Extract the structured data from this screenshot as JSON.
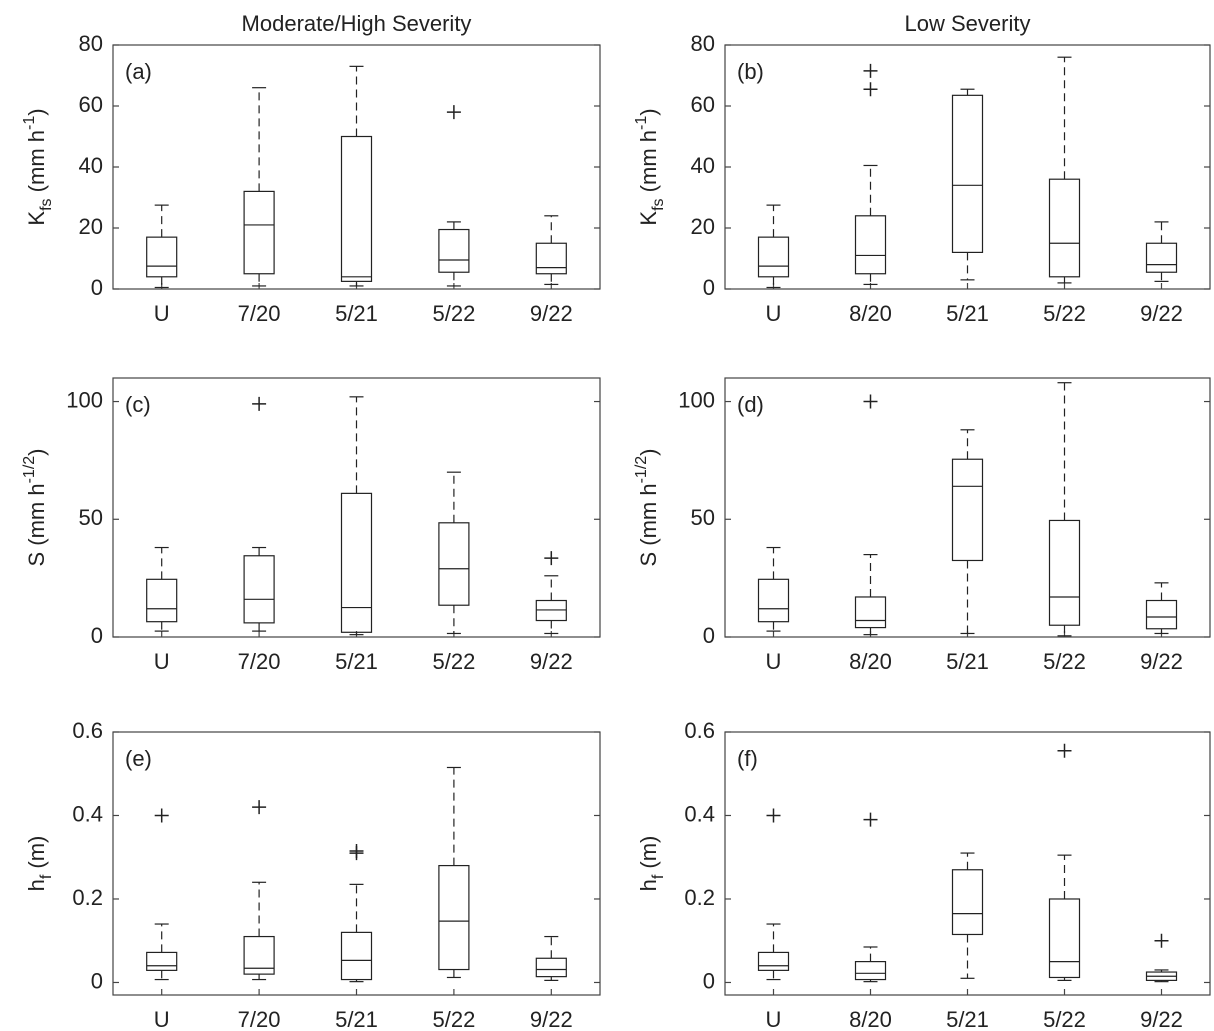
{
  "chart_data": [
    {
      "type": "box",
      "title": "Moderate/High Severity",
      "panel_label": "(a)",
      "ylabel": [
        {
          "text": "K"
        },
        {
          "sub": "fs"
        },
        {
          "text": " (mm h"
        },
        {
          "sup": "-1"
        },
        {
          "text": ")"
        }
      ],
      "categories": [
        "U",
        "7/20",
        "5/21",
        "5/22",
        "9/22"
      ],
      "boxes": [
        {
          "min": 0.5,
          "q1": 4,
          "median": 7.5,
          "q3": 17,
          "max": 27.5,
          "outliers": []
        },
        {
          "min": 1,
          "q1": 5,
          "median": 21,
          "q3": 32,
          "max": 66,
          "outliers": []
        },
        {
          "min": 1,
          "q1": 2.5,
          "median": 4,
          "q3": 50,
          "max": 73,
          "outliers": []
        },
        {
          "min": 1,
          "q1": 5.5,
          "median": 9.5,
          "q3": 19.5,
          "max": 22,
          "outliers": [
            58
          ]
        },
        {
          "min": 1.5,
          "q1": 5,
          "median": 7,
          "q3": 15,
          "max": 24,
          "outliers": []
        }
      ],
      "ylim": [
        0,
        80
      ],
      "yticks": [
        0,
        20,
        40,
        60,
        80
      ]
    },
    {
      "type": "box",
      "title": "Low Severity",
      "panel_label": "(b)",
      "ylabel": [
        {
          "text": "K"
        },
        {
          "sub": "fs"
        },
        {
          "text": " (mm h"
        },
        {
          "sup": "-1"
        },
        {
          "text": ")"
        }
      ],
      "categories": [
        "U",
        "8/20",
        "5/21",
        "5/22",
        "9/22"
      ],
      "boxes": [
        {
          "min": 0.5,
          "q1": 4,
          "median": 7.5,
          "q3": 17,
          "max": 27.5,
          "outliers": []
        },
        {
          "min": 1.5,
          "q1": 5,
          "median": 11,
          "q3": 24,
          "max": 40.5,
          "outliers": [
            65.5,
            71.5
          ]
        },
        {
          "min": 3,
          "q1": 12,
          "median": 34,
          "q3": 63.5,
          "max": 65.5,
          "outliers": []
        },
        {
          "min": 2,
          "q1": 4,
          "median": 15,
          "q3": 36,
          "max": 76,
          "outliers": []
        },
        {
          "min": 2.5,
          "q1": 5.5,
          "median": 8,
          "q3": 15,
          "max": 22,
          "outliers": []
        }
      ],
      "ylim": [
        0,
        80
      ],
      "yticks": [
        0,
        20,
        40,
        60,
        80
      ]
    },
    {
      "type": "box",
      "panel_label": "(c)",
      "ylabel": [
        {
          "text": "S (mm h"
        },
        {
          "sup": "-1/2"
        },
        {
          "text": ")"
        }
      ],
      "categories": [
        "U",
        "7/20",
        "5/21",
        "5/22",
        "9/22"
      ],
      "boxes": [
        {
          "min": 2.5,
          "q1": 6.5,
          "median": 12,
          "q3": 24.5,
          "max": 38,
          "outliers": []
        },
        {
          "min": 2.5,
          "q1": 6,
          "median": 16,
          "q3": 34.5,
          "max": 38,
          "outliers": [
            99
          ]
        },
        {
          "min": 1,
          "q1": 2,
          "median": 12.5,
          "q3": 61,
          "max": 102,
          "outliers": []
        },
        {
          "min": 1.5,
          "q1": 13.5,
          "median": 29,
          "q3": 48.5,
          "max": 70,
          "outliers": []
        },
        {
          "min": 1.5,
          "q1": 7,
          "median": 11.5,
          "q3": 15.5,
          "max": 26,
          "outliers": [
            33.5
          ]
        }
      ],
      "ylim": [
        0,
        110
      ],
      "yticks": [
        0,
        50,
        100
      ]
    },
    {
      "type": "box",
      "panel_label": "(d)",
      "ylabel": [
        {
          "text": "S (mm h"
        },
        {
          "sup": "-1/2"
        },
        {
          "text": ")"
        }
      ],
      "categories": [
        "U",
        "8/20",
        "5/21",
        "5/22",
        "9/22"
      ],
      "boxes": [
        {
          "min": 2.5,
          "q1": 6.5,
          "median": 12,
          "q3": 24.5,
          "max": 38,
          "outliers": []
        },
        {
          "min": 1,
          "q1": 4,
          "median": 7,
          "q3": 17,
          "max": 35,
          "outliers": [
            100
          ]
        },
        {
          "min": 1.5,
          "q1": 32.5,
          "median": 64,
          "q3": 75.5,
          "max": 88,
          "outliers": []
        },
        {
          "min": 0.5,
          "q1": 5,
          "median": 17,
          "q3": 49.5,
          "max": 108,
          "outliers": []
        },
        {
          "min": 1.5,
          "q1": 3.5,
          "median": 8.5,
          "q3": 15.5,
          "max": 23,
          "outliers": []
        }
      ],
      "ylim": [
        0,
        110
      ],
      "yticks": [
        0,
        50,
        100
      ]
    },
    {
      "type": "box",
      "panel_label": "(e)",
      "ylabel": [
        {
          "text": "h"
        },
        {
          "sub": "f"
        },
        {
          "text": " (m)"
        }
      ],
      "categories": [
        "U",
        "7/20",
        "5/21",
        "5/22",
        "9/22"
      ],
      "boxes": [
        {
          "min": 0.007,
          "q1": 0.029,
          "median": 0.04,
          "q3": 0.072,
          "max": 0.14,
          "outliers": [
            0.4
          ]
        },
        {
          "min": 0.007,
          "q1": 0.02,
          "median": 0.034,
          "q3": 0.11,
          "max": 0.24,
          "outliers": [
            0.42
          ]
        },
        {
          "min": 0.002,
          "q1": 0.007,
          "median": 0.053,
          "q3": 0.12,
          "max": 0.235,
          "outliers": [
            0.31,
            0.315
          ]
        },
        {
          "min": 0.012,
          "q1": 0.031,
          "median": 0.147,
          "q3": 0.28,
          "max": 0.515,
          "outliers": []
        },
        {
          "min": 0.005,
          "q1": 0.014,
          "median": 0.031,
          "q3": 0.058,
          "max": 0.11,
          "outliers": []
        }
      ],
      "ylim": [
        -0.03,
        0.6
      ],
      "yticks": [
        0,
        0.2,
        0.4,
        0.6
      ]
    },
    {
      "type": "box",
      "panel_label": "(f)",
      "ylabel": [
        {
          "text": "h"
        },
        {
          "sub": "f"
        },
        {
          "text": " (m)"
        }
      ],
      "categories": [
        "U",
        "8/20",
        "5/21",
        "5/22",
        "9/22"
      ],
      "boxes": [
        {
          "min": 0.007,
          "q1": 0.029,
          "median": 0.04,
          "q3": 0.072,
          "max": 0.14,
          "outliers": [
            0.4
          ]
        },
        {
          "min": 0.002,
          "q1": 0.007,
          "median": 0.022,
          "q3": 0.05,
          "max": 0.085,
          "outliers": [
            0.39
          ]
        },
        {
          "min": 0.01,
          "q1": 0.115,
          "median": 0.165,
          "q3": 0.27,
          "max": 0.31,
          "outliers": []
        },
        {
          "min": 0.005,
          "q1": 0.012,
          "median": 0.05,
          "q3": 0.2,
          "max": 0.305,
          "outliers": [
            0.555
          ]
        },
        {
          "min": 0.002,
          "q1": 0.005,
          "median": 0.015,
          "q3": 0.025,
          "max": 0.03,
          "outliers": [
            0.1
          ]
        }
      ],
      "ylim": [
        -0.03,
        0.6
      ],
      "yticks": [
        0,
        0.2,
        0.4,
        0.6
      ]
    }
  ]
}
